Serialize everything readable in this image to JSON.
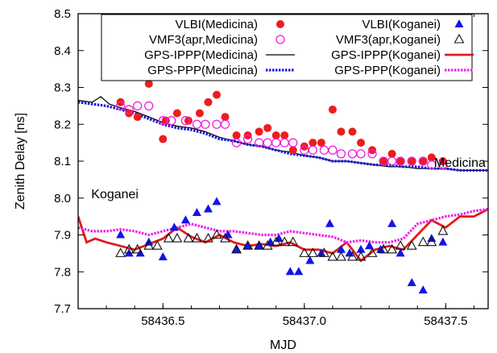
{
  "chart_data": {
    "type": "scatter",
    "xlabel": "MJD",
    "ylabel": "Zenith Delay [ns]",
    "xlim": [
      58436.2,
      58437.65
    ],
    "ylim": [
      7.7,
      8.5
    ],
    "xticks": [
      {
        "value": 58436.5,
        "label": "58436.5"
      },
      {
        "value": 58437.0,
        "label": "58437.0"
      },
      {
        "value": 58437.5,
        "label": "58437.5"
      }
    ],
    "yticks": [
      {
        "value": 7.7,
        "label": "7.7"
      },
      {
        "value": 7.8,
        "label": "7.8"
      },
      {
        "value": 7.9,
        "label": "7.9"
      },
      {
        "value": 8.0,
        "label": "8.0"
      },
      {
        "value": 8.1,
        "label": "8.1"
      },
      {
        "value": 8.2,
        "label": "8.2"
      },
      {
        "value": 8.3,
        "label": "8.3"
      },
      {
        "value": 8.4,
        "label": "8.4"
      },
      {
        "value": 8.5,
        "label": "8.5"
      }
    ],
    "grid": false,
    "legend_position": "top",
    "annotations": [
      {
        "text": "Medicina",
        "x": 58437.55,
        "y": 8.085
      },
      {
        "text": "Koganei",
        "x": 58436.33,
        "y": 8.0
      }
    ],
    "series": [
      {
        "name": "VLBI(Medicina)",
        "mark": "filled-circle",
        "color": "#ee1c1c",
        "x": [
          58436.35,
          58436.38,
          58436.41,
          58436.45,
          58436.5,
          58436.51,
          58436.55,
          58436.59,
          58436.63,
          58436.66,
          58436.69,
          58436.72,
          58436.76,
          58436.8,
          58436.84,
          58436.87,
          58436.9,
          58436.93,
          58436.96,
          58437.0,
          58437.03,
          58437.06,
          58437.1,
          58437.13,
          58437.17,
          58437.2,
          58437.24,
          58437.28,
          58437.31,
          58437.34,
          58437.38,
          58437.42,
          58437.45,
          58437.49
        ],
        "y": [
          8.26,
          8.23,
          8.22,
          8.31,
          8.16,
          8.21,
          8.23,
          8.21,
          8.23,
          8.26,
          8.28,
          8.22,
          8.17,
          8.17,
          8.18,
          8.19,
          8.17,
          8.17,
          8.13,
          8.14,
          8.15,
          8.15,
          8.24,
          8.18,
          8.18,
          8.15,
          8.13,
          8.1,
          8.12,
          8.1,
          8.1,
          8.1,
          8.11,
          8.1
        ]
      },
      {
        "name": "VMF3(apr,Medicina)",
        "mark": "open-circle",
        "color": "#ee1ee0",
        "x": [
          58436.35,
          58436.38,
          58436.41,
          58436.45,
          58436.5,
          58436.53,
          58436.58,
          58436.62,
          58436.65,
          58436.69,
          58436.72,
          58436.76,
          58436.8,
          58436.84,
          58436.87,
          58436.9,
          58436.93,
          58436.96,
          58437.0,
          58437.03,
          58437.07,
          58437.1,
          58437.13,
          58437.17,
          58437.2,
          58437.24,
          58437.28,
          58437.31,
          58437.34,
          58437.38,
          58437.42,
          58437.45,
          58437.49
        ],
        "y": [
          8.25,
          8.24,
          8.25,
          8.25,
          8.21,
          8.21,
          8.21,
          8.2,
          8.2,
          8.2,
          8.2,
          8.15,
          8.16,
          8.15,
          8.15,
          8.15,
          8.15,
          8.15,
          8.13,
          8.13,
          8.13,
          8.13,
          8.12,
          8.12,
          8.12,
          8.12,
          8.1,
          8.1,
          8.1,
          8.1,
          8.1,
          8.09,
          8.09
        ]
      },
      {
        "name": "VLBI(Koganei)",
        "mark": "filled-triangle",
        "color": "#1414e6",
        "x": [
          58436.35,
          58436.38,
          58436.42,
          58436.45,
          58436.5,
          58436.54,
          58436.58,
          58436.62,
          58436.66,
          58436.69,
          58436.73,
          58436.76,
          58436.8,
          58436.84,
          58436.88,
          58436.91,
          58436.95,
          58436.98,
          58437.02,
          58437.06,
          58437.09,
          58437.13,
          58437.16,
          58437.2,
          58437.23,
          58437.27,
          58437.31,
          58437.34,
          58437.38,
          58437.42,
          58437.45,
          58437.49
        ],
        "y": [
          7.9,
          7.85,
          7.85,
          7.88,
          7.84,
          7.92,
          7.94,
          7.96,
          7.97,
          7.99,
          7.9,
          7.86,
          7.87,
          7.87,
          7.88,
          7.89,
          7.8,
          7.8,
          7.83,
          7.85,
          7.93,
          7.86,
          7.85,
          7.86,
          7.87,
          7.86,
          7.93,
          7.85,
          7.77,
          7.75,
          7.89,
          7.88
        ]
      },
      {
        "name": "VMF3(apr,Koganei)",
        "mark": "open-triangle",
        "color": "#111111",
        "x": [
          58436.35,
          58436.38,
          58436.41,
          58436.45,
          58436.48,
          58436.52,
          58436.55,
          58436.59,
          58436.62,
          58436.66,
          58436.69,
          58436.72,
          58436.76,
          58436.8,
          58436.84,
          58436.87,
          58436.9,
          58436.93,
          58436.96,
          58437.0,
          58437.03,
          58437.07,
          58437.1,
          58437.13,
          58437.17,
          58437.2,
          58437.24,
          58437.28,
          58437.31,
          58437.34,
          58437.38,
          58437.42,
          58437.45,
          58437.49
        ],
        "y": [
          7.85,
          7.86,
          7.86,
          7.87,
          7.87,
          7.89,
          7.89,
          7.89,
          7.89,
          7.89,
          7.9,
          7.89,
          7.86,
          7.87,
          7.87,
          7.87,
          7.88,
          7.88,
          7.88,
          7.85,
          7.85,
          7.85,
          7.84,
          7.84,
          7.84,
          7.84,
          7.85,
          7.86,
          7.86,
          7.87,
          7.87,
          7.88,
          7.88,
          7.91
        ]
      },
      {
        "name": "GPS-IPPP(Medicina)",
        "mark": "line",
        "color": "#000000",
        "dash": "solid",
        "x": [
          58436.2,
          58436.25,
          58436.28,
          58436.31,
          58436.35,
          58436.4,
          58436.45,
          58436.5,
          58436.55,
          58436.6,
          58436.65,
          58436.7,
          58436.75,
          58436.8,
          58436.85,
          58436.9,
          58436.95,
          58437.0,
          58437.05,
          58437.1,
          58437.15,
          58437.2,
          58437.25,
          58437.3,
          58437.35,
          58437.4,
          58437.45,
          58437.5,
          58437.55,
          58437.6,
          58437.65
        ],
        "y": [
          8.265,
          8.26,
          8.275,
          8.255,
          8.245,
          8.235,
          8.22,
          8.205,
          8.195,
          8.19,
          8.18,
          8.165,
          8.155,
          8.145,
          8.14,
          8.13,
          8.125,
          8.115,
          8.11,
          8.1,
          8.1,
          8.095,
          8.09,
          8.085,
          8.085,
          8.08,
          8.08,
          8.08,
          8.075,
          8.075,
          8.075
        ]
      },
      {
        "name": "GPS-PPP(Medicina)",
        "mark": "line",
        "color": "#1a1ad8",
        "dash": "dotted",
        "x": [
          58436.2,
          58436.25,
          58436.3,
          58436.35,
          58436.4,
          58436.45,
          58436.5,
          58436.55,
          58436.6,
          58436.65,
          58436.7,
          58436.75,
          58436.8,
          58436.85,
          58436.9,
          58436.95,
          58437.0,
          58437.05,
          58437.1,
          58437.15,
          58437.2,
          58437.25,
          58437.3,
          58437.35,
          58437.4,
          58437.45,
          58437.5,
          58437.55,
          58437.6,
          58437.65
        ],
        "y": [
          8.26,
          8.255,
          8.25,
          8.24,
          8.23,
          8.215,
          8.2,
          8.19,
          8.185,
          8.175,
          8.16,
          8.155,
          8.145,
          8.14,
          8.13,
          8.12,
          8.115,
          8.11,
          8.1,
          8.1,
          8.095,
          8.09,
          8.09,
          8.085,
          8.085,
          8.08,
          8.08,
          8.075,
          8.075,
          8.075
        ]
      },
      {
        "name": "GPS-IPPP(Koganei)",
        "mark": "line",
        "color": "#e01b1b",
        "dash": "solid",
        "x": [
          58436.2,
          58436.23,
          58436.26,
          58436.3,
          58436.35,
          58436.4,
          58436.45,
          58436.5,
          58436.55,
          58436.6,
          58436.65,
          58436.7,
          58436.75,
          58436.8,
          58436.85,
          58436.9,
          58436.95,
          58437.0,
          58437.05,
          58437.1,
          58437.15,
          58437.2,
          58437.25,
          58437.3,
          58437.35,
          58437.4,
          58437.45,
          58437.5,
          58437.55,
          58437.6,
          58437.65
        ],
        "y": [
          7.95,
          7.88,
          7.89,
          7.88,
          7.87,
          7.86,
          7.875,
          7.89,
          7.92,
          7.895,
          7.88,
          7.9,
          7.88,
          7.87,
          7.875,
          7.87,
          7.88,
          7.86,
          7.86,
          7.85,
          7.88,
          7.83,
          7.86,
          7.87,
          7.86,
          7.9,
          7.94,
          7.92,
          7.95,
          7.95,
          7.97
        ]
      },
      {
        "name": "GPS-PPP(Koganei)",
        "mark": "line",
        "color": "#ee22ee",
        "dash": "dotted",
        "x": [
          58436.2,
          58436.25,
          58436.3,
          58436.35,
          58436.4,
          58436.45,
          58436.5,
          58436.55,
          58436.6,
          58436.65,
          58436.7,
          58436.75,
          58436.8,
          58436.85,
          58436.9,
          58436.95,
          58437.0,
          58437.05,
          58437.1,
          58437.15,
          58437.2,
          58437.25,
          58437.3,
          58437.35,
          58437.4,
          58437.45,
          58437.5,
          58437.55,
          58437.6,
          58437.65
        ],
        "y": [
          7.92,
          7.91,
          7.91,
          7.915,
          7.91,
          7.9,
          7.91,
          7.92,
          7.93,
          7.92,
          7.91,
          7.91,
          7.905,
          7.9,
          7.9,
          7.91,
          7.905,
          7.9,
          7.895,
          7.88,
          7.885,
          7.88,
          7.88,
          7.89,
          7.93,
          7.94,
          7.95,
          7.955,
          7.965,
          7.97
        ]
      }
    ]
  }
}
